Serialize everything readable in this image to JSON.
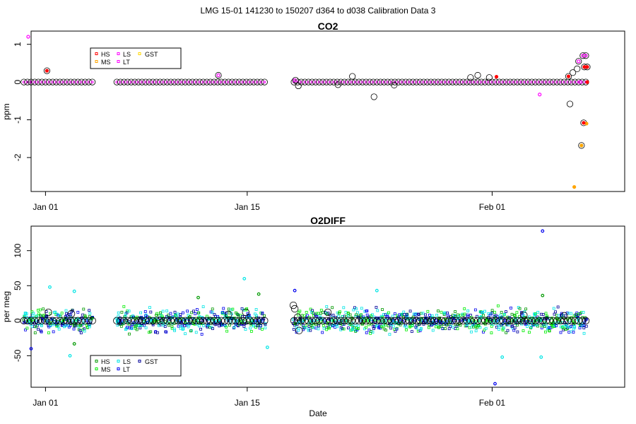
{
  "figure": {
    "title": "LMG   15-01    141230 to 150207    d364 to d038   Calibration Data 3",
    "xlabel": "Date"
  },
  "colors": {
    "HS": "#ff0000",
    "MS": "#ffa500",
    "LS": "#ff00ff",
    "LT": "#ff00ff",
    "GST": "#ffd700",
    "o2_HS": "#009900",
    "o2_MS": "#00ee00",
    "o2_LS": "#00e5e5",
    "o2_LT": "#0000ee",
    "o2_GST": "#000099",
    "circle": "#000000"
  },
  "chart_data": [
    {
      "id": "co2",
      "type": "scatter",
      "title": "CO2",
      "ylabel": "ppm",
      "ylim": [
        -2.9,
        1.35
      ],
      "yticks": [
        -2,
        -1,
        0,
        1
      ],
      "xlim": [
        -1.0,
        40.2
      ],
      "x_unit": "days since Jan 01",
      "xticks": [
        {
          "v": 0,
          "label": "Jan 01"
        },
        {
          "v": 14,
          "label": "Jan 15"
        },
        {
          "v": 31,
          "label": "Feb 01"
        }
      ],
      "legend": {
        "placement": "top-left",
        "entries": [
          "HS",
          "MS",
          "LS",
          "LT",
          "GST"
        ]
      },
      "segments": [
        [
          -1.5,
          3.25
        ],
        [
          4.95,
          11.0
        ],
        [
          11.2,
          15.25
        ],
        [
          17.25,
          28.8
        ],
        [
          29.0,
          37.6
        ]
      ],
      "step": 0.25,
      "baseline": 0.0,
      "circle_outliers": [
        {
          "x": 0.1,
          "y": 0.3
        },
        {
          "x": 12.0,
          "y": 0.18
        },
        {
          "x": 17.35,
          "y": 0.05
        },
        {
          "x": 17.55,
          "y": -0.1
        },
        {
          "x": 20.3,
          "y": -0.07
        },
        {
          "x": 21.3,
          "y": 0.15
        },
        {
          "x": 22.8,
          "y": -0.39
        },
        {
          "x": 24.2,
          "y": -0.08
        },
        {
          "x": 29.5,
          "y": 0.12
        },
        {
          "x": 30.0,
          "y": 0.18
        },
        {
          "x": 30.8,
          "y": 0.12
        },
        {
          "x": 36.3,
          "y": 0.15
        },
        {
          "x": 36.6,
          "y": 0.25
        },
        {
          "x": 36.4,
          "y": -0.58
        },
        {
          "x": 37.0,
          "y": 0.55
        },
        {
          "x": 37.3,
          "y": 0.7
        },
        {
          "x": 37.5,
          "y": 0.7
        },
        {
          "x": 37.4,
          "y": 0.4
        },
        {
          "x": 37.6,
          "y": 0.4
        },
        {
          "x": 36.9,
          "y": 0.35
        },
        {
          "x": 37.35,
          "y": -1.08
        },
        {
          "x": 37.2,
          "y": -1.68
        }
      ],
      "colored_points": [
        {
          "s": "LS",
          "x": -1.2,
          "y": 1.2
        },
        {
          "s": "HS",
          "x": 0.1,
          "y": 0.3
        },
        {
          "s": "MS",
          "x": 36.7,
          "y": -2.78
        },
        {
          "s": "MS",
          "x": 37.2,
          "y": -1.68
        },
        {
          "s": "MS",
          "x": 37.55,
          "y": -1.1
        },
        {
          "s": "HS",
          "x": 37.35,
          "y": -1.08
        },
        {
          "s": "LS",
          "x": 37.3,
          "y": 0.7
        },
        {
          "s": "LS",
          "x": 37.5,
          "y": 0.7
        },
        {
          "s": "LT",
          "x": 37.0,
          "y": 0.55
        },
        {
          "s": "HS",
          "x": 37.4,
          "y": 0.4
        },
        {
          "s": "HS",
          "x": 37.6,
          "y": 0.4
        },
        {
          "s": "HS",
          "x": 36.3,
          "y": 0.15
        },
        {
          "s": "LS",
          "x": 34.3,
          "y": -0.33
        },
        {
          "s": "HS",
          "x": 31.3,
          "y": 0.14
        },
        {
          "s": "LS",
          "x": 37.1,
          "y": 0.0
        },
        {
          "s": "HS",
          "x": 37.6,
          "y": 0.0
        },
        {
          "s": "LS",
          "x": 12.0,
          "y": 0.18
        },
        {
          "s": "LS",
          "x": 17.3,
          "y": 0.05
        }
      ]
    },
    {
      "id": "o2",
      "type": "scatter",
      "title": "O2DIFF",
      "ylabel": "per meg",
      "ylim": [
        -95,
        135
      ],
      "yticks": [
        -50,
        0,
        50,
        100
      ],
      "xlim": [
        -1.0,
        40.2
      ],
      "x_unit": "days since Jan 01",
      "xticks": [
        {
          "v": 0,
          "label": "Jan 01"
        },
        {
          "v": 14,
          "label": "Jan 15"
        },
        {
          "v": 31,
          "label": "Feb 01"
        }
      ],
      "legend": {
        "placement": "bottom-left",
        "entries": [
          "HS",
          "MS",
          "LS",
          "LT",
          "GST"
        ]
      },
      "segments": [
        [
          -1.5,
          3.25
        ],
        [
          4.95,
          11.0
        ],
        [
          11.2,
          15.25
        ],
        [
          17.25,
          28.8
        ],
        [
          29.0,
          37.6
        ]
      ],
      "step": 0.25,
      "baseline": 0.0,
      "scatter_spread": 14,
      "circle_outliers": [
        {
          "x": 17.2,
          "y": 22
        },
        {
          "x": 17.3,
          "y": 17
        },
        {
          "x": 17.5,
          "y": 5
        },
        {
          "x": 17.6,
          "y": -14
        },
        {
          "x": 19.6,
          "y": 12
        },
        {
          "x": 13.9,
          "y": 12
        },
        {
          "x": 0.2,
          "y": 12
        },
        {
          "x": 1.8,
          "y": 10
        },
        {
          "x": 12.7,
          "y": 9
        },
        {
          "x": 33.2,
          "y": 8
        },
        {
          "x": 36.0,
          "y": 7
        }
      ],
      "colored_points": [
        {
          "s": "LT",
          "x": 31.2,
          "y": -90
        },
        {
          "s": "LT",
          "x": 34.5,
          "y": 128
        },
        {
          "s": "LS",
          "x": 13.8,
          "y": 60
        },
        {
          "s": "LS",
          "x": 0.3,
          "y": 48
        },
        {
          "s": "LS",
          "x": 2.0,
          "y": 42
        },
        {
          "s": "LS",
          "x": 23.0,
          "y": 43
        },
        {
          "s": "LT",
          "x": 17.3,
          "y": 43
        },
        {
          "s": "HS",
          "x": 34.5,
          "y": 36
        },
        {
          "s": "HS",
          "x": 14.8,
          "y": 38
        },
        {
          "s": "HS",
          "x": 10.6,
          "y": 33
        },
        {
          "s": "LS",
          "x": 34.4,
          "y": -52
        },
        {
          "s": "LS",
          "x": 31.7,
          "y": -52
        },
        {
          "s": "LS",
          "x": 1.7,
          "y": -50
        },
        {
          "s": "HS",
          "x": 2.0,
          "y": -33
        },
        {
          "s": "LT",
          "x": -1.0,
          "y": -40
        },
        {
          "s": "LS",
          "x": 15.4,
          "y": -38
        }
      ]
    }
  ]
}
